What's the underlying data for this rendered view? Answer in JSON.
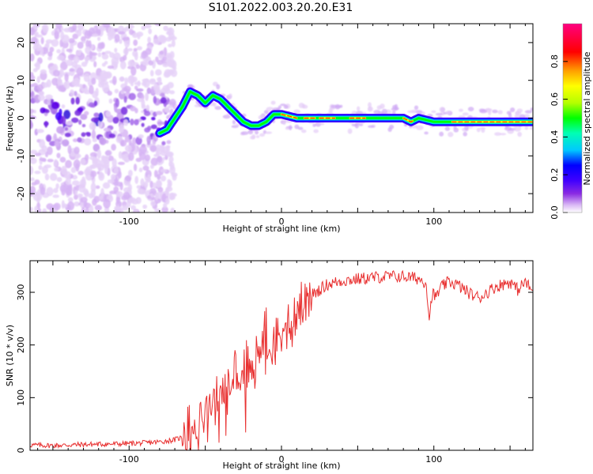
{
  "title": "S101.2022.003.20.20.E31",
  "chart_data": [
    {
      "type": "heatmap",
      "xlabel": "Height of straight line (km)",
      "ylabel": "Frequency (Hz)",
      "xlim": [
        -165,
        165
      ],
      "ylim": [
        -25,
        25
      ],
      "xticks": [
        -100,
        0,
        100
      ],
      "yticks": [
        -20,
        -10,
        0,
        10,
        20
      ],
      "colorbar": {
        "label": "Normalized spectral amplitude",
        "range": [
          0.0,
          1.0
        ],
        "ticks": [
          0.0,
          0.2,
          0.4,
          0.6,
          0.8
        ],
        "colormap": "rainbow",
        "colors": [
          "#ffffff",
          "#d9b8f5",
          "#8a2be2",
          "#3f00ff",
          "#0000ff",
          "#00c8ff",
          "#00ffb4",
          "#00ff00",
          "#b4ff00",
          "#ffff00",
          "#ffa000",
          "#ff0000",
          "#ff0080"
        ]
      },
      "ridge": {
        "x": [
          -80,
          -75,
          -70,
          -65,
          -60,
          -55,
          -50,
          -45,
          -40,
          -35,
          -30,
          -25,
          -20,
          -15,
          -10,
          -5,
          0,
          10,
          20,
          40,
          60,
          80,
          85,
          90,
          100,
          110,
          130,
          150,
          165
        ],
        "frequency": [
          -4,
          -3,
          0,
          3,
          7,
          6,
          4,
          6,
          5,
          3,
          1,
          -1,
          -2,
          -2,
          -1,
          1,
          1,
          0,
          0,
          0,
          0,
          0,
          -1,
          0,
          -1,
          -1,
          -1,
          -1,
          -1
        ]
      }
    },
    {
      "type": "line",
      "xlabel": "Height of straight line (km)",
      "ylabel": "SNR (10 * v/v)",
      "xlim": [
        -165,
        165
      ],
      "ylim": [
        0,
        360
      ],
      "xticks": [
        -100,
        0,
        100
      ],
      "yticks": [
        0,
        100,
        200,
        300
      ],
      "color": "#e83030",
      "series": [
        {
          "x": [
            -165,
            -150,
            -130,
            -110,
            -90,
            -80,
            -70,
            -60,
            -55,
            -50,
            -45,
            -40,
            -35,
            -30,
            -25,
            -20,
            -15,
            -10,
            -5,
            0,
            5,
            10,
            15,
            20,
            25,
            30,
            40,
            50,
            60,
            70,
            80,
            90,
            95,
            97,
            99,
            101,
            105,
            110,
            115,
            120,
            125,
            130,
            140,
            150,
            155,
            160,
            165
          ],
          "values": [
            10,
            9,
            11,
            12,
            14,
            16,
            20,
            30,
            45,
            70,
            95,
            110,
            120,
            135,
            150,
            165,
            180,
            200,
            215,
            225,
            240,
            260,
            275,
            295,
            305,
            315,
            322,
            325,
            328,
            330,
            330,
            326,
            318,
            250,
            300,
            290,
            310,
            320,
            315,
            305,
            295,
            290,
            310,
            320,
            305,
            320,
            300
          ]
        }
      ]
    }
  ]
}
